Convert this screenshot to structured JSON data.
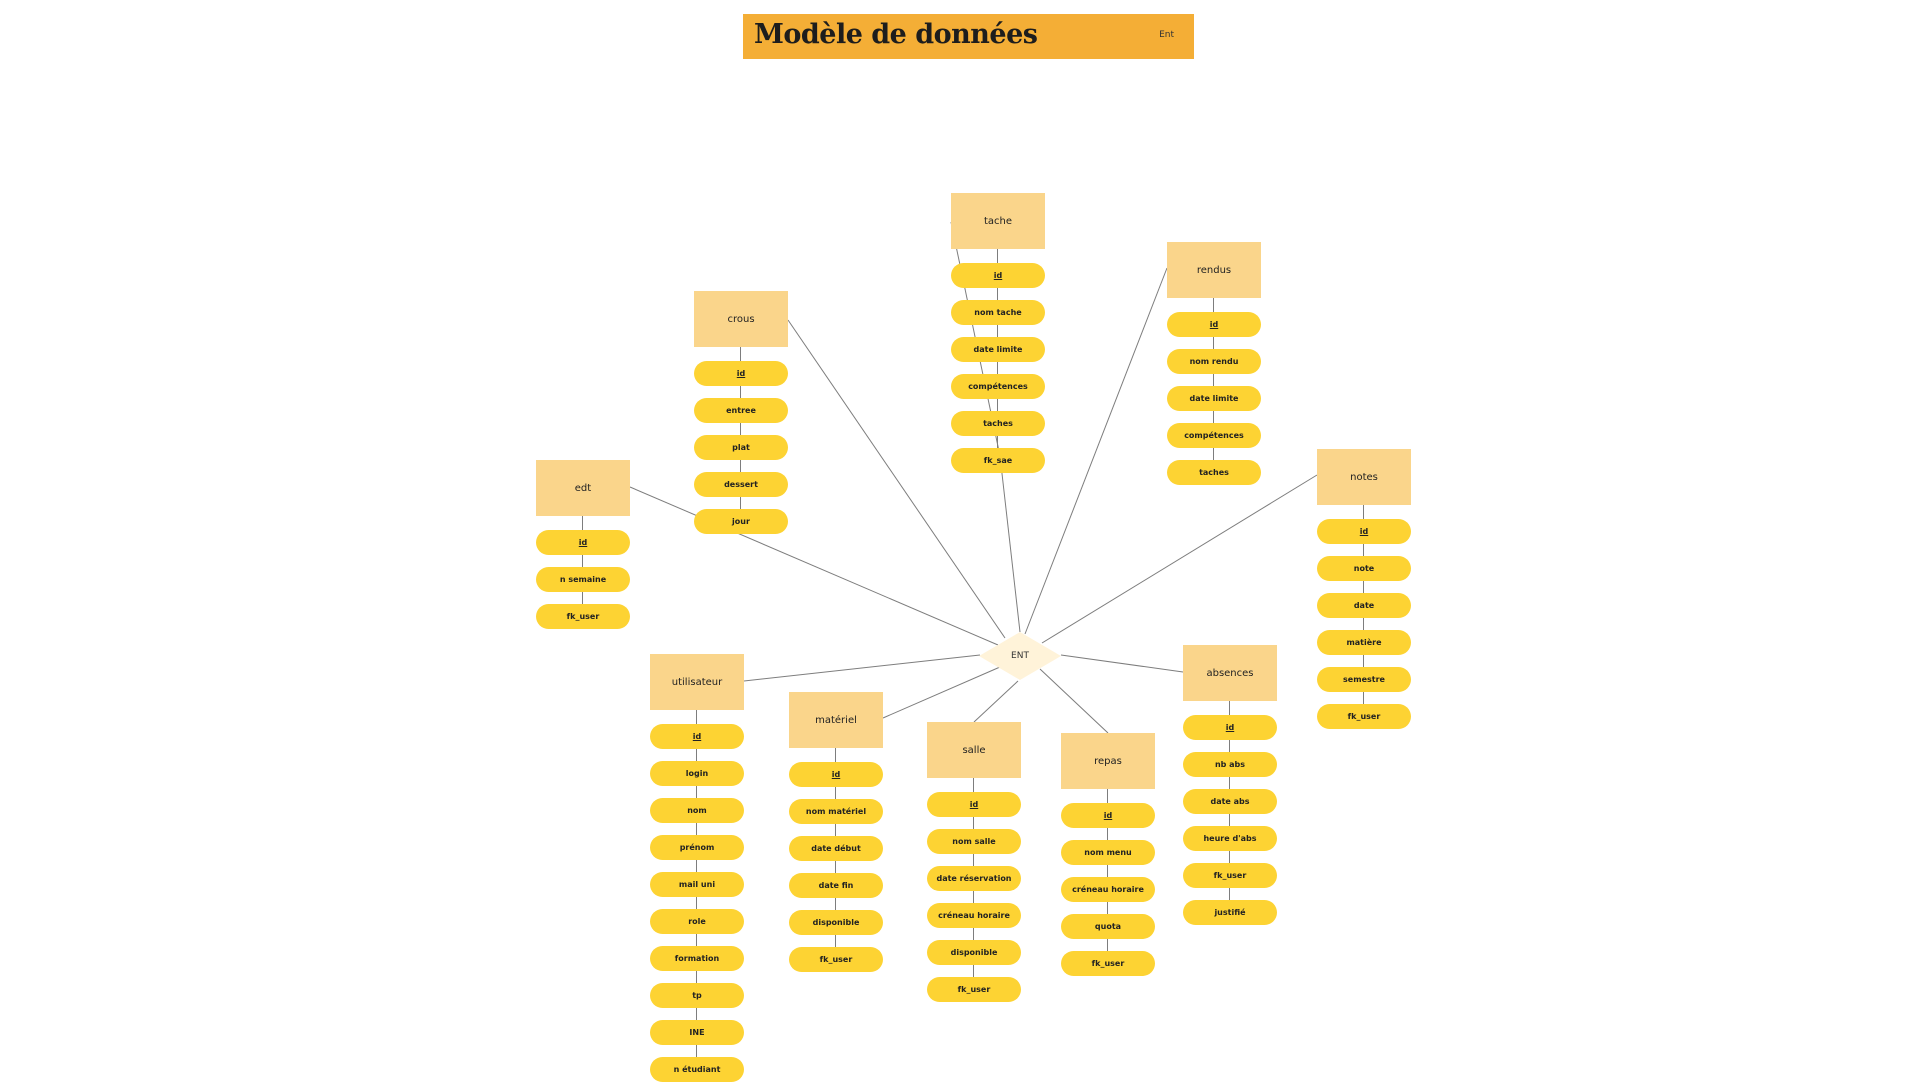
{
  "diagram": {
    "title": "Modèle de données",
    "tag": "Ent",
    "center": {
      "label": "ENT",
      "color": "#fff3d9"
    },
    "colors": {
      "header": "#f4ae36",
      "entity": "#fad58b",
      "attribute": "#fdd333",
      "line": "#7d7d7d"
    },
    "entities": [
      {
        "id": "tache",
        "label": "tache",
        "attributes": [
          "id",
          "nom tache",
          "date limite",
          "compétences",
          "taches",
          "fk_sae"
        ]
      },
      {
        "id": "rendus",
        "label": "rendus",
        "attributes": [
          "id",
          "nom rendu",
          "date limite",
          "compétences",
          "taches"
        ]
      },
      {
        "id": "crous",
        "label": "crous",
        "attributes": [
          "id",
          "entree",
          "plat",
          "dessert",
          "jour"
        ]
      },
      {
        "id": "edt",
        "label": "edt",
        "attributes": [
          "id",
          "n semaine",
          "fk_user"
        ]
      },
      {
        "id": "notes",
        "label": "notes",
        "attributes": [
          "id",
          "note",
          "date",
          "matière",
          "semestre",
          "fk_user"
        ]
      },
      {
        "id": "utilisateur",
        "label": "utilisateur",
        "attributes": [
          "id",
          "login",
          "nom",
          "prénom",
          "mail uni",
          "role",
          "formation",
          "tp",
          "INE",
          "n étudiant"
        ]
      },
      {
        "id": "materiel",
        "label": "matériel",
        "attributes": [
          "id",
          "nom matériel",
          "date début",
          "date fin",
          "disponible",
          "fk_user"
        ]
      },
      {
        "id": "salle",
        "label": "salle",
        "attributes": [
          "id",
          "nom salle",
          "date réservation",
          "créneau horaire",
          "disponible",
          "fk_user"
        ]
      },
      {
        "id": "repas",
        "label": "repas",
        "attributes": [
          "id",
          "nom menu",
          "créneau horaire",
          "quota",
          "fk_user"
        ]
      },
      {
        "id": "absences",
        "label": "absences",
        "attributes": [
          "id",
          "nb abs",
          "date abs",
          "heure d'abs",
          "fk_user",
          "justifié"
        ]
      }
    ]
  }
}
